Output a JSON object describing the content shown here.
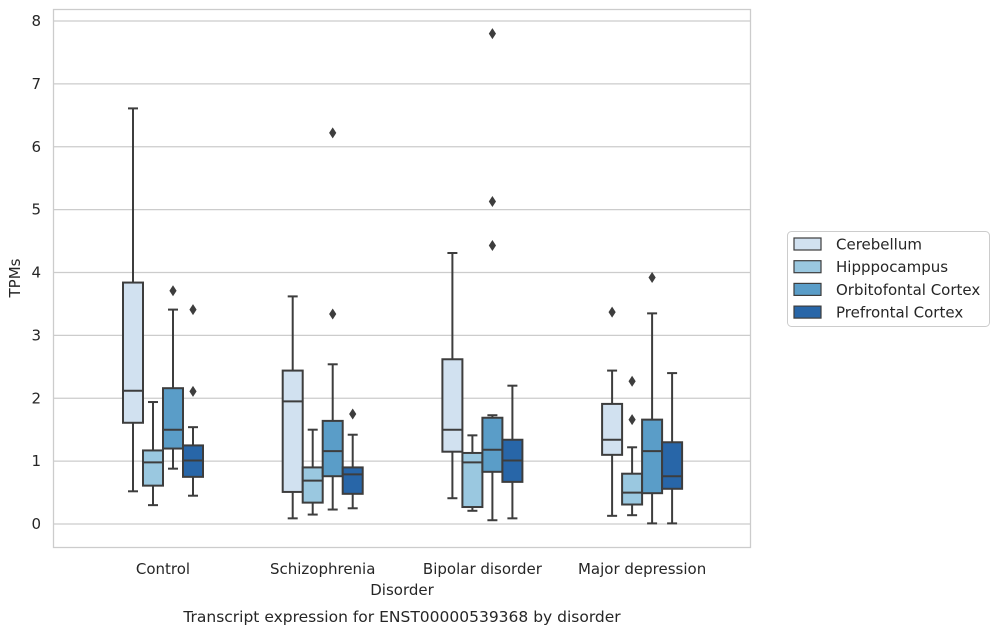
{
  "chart_data": {
    "type": "box",
    "title": "",
    "caption": "Transcript expression for ENST00000539368 by disorder",
    "xlabel": "Disorder",
    "ylabel": "TPMs",
    "ylim": [
      -0.38,
      8.18
    ],
    "yticks": [
      0,
      1,
      2,
      3,
      4,
      5,
      6,
      7,
      8
    ],
    "grid": true,
    "legend_position": "right",
    "categories": [
      "Control",
      "Schizophrenia",
      "Bipolar disorder",
      "Major depression"
    ],
    "series": [
      {
        "name": "Cerebellum",
        "color": "#d1e1f0",
        "boxes": [
          {
            "whislo": 0.52,
            "q1": 1.61,
            "med": 2.12,
            "q3": 3.84,
            "whishi": 6.61,
            "fliers": []
          },
          {
            "whislo": 0.09,
            "q1": 0.51,
            "med": 1.95,
            "q3": 2.44,
            "whishi": 3.62,
            "fliers": []
          },
          {
            "whislo": 0.41,
            "q1": 1.15,
            "med": 1.5,
            "q3": 2.62,
            "whishi": 4.31,
            "fliers": []
          },
          {
            "whislo": 0.13,
            "q1": 1.1,
            "med": 1.34,
            "q3": 1.91,
            "whishi": 2.44,
            "fliers": [
              3.37
            ]
          }
        ]
      },
      {
        "name": "Hipppocampus",
        "color": "#9ac8e0",
        "boxes": [
          {
            "whislo": 0.3,
            "q1": 0.61,
            "med": 0.98,
            "q3": 1.17,
            "whishi": 1.94,
            "fliers": []
          },
          {
            "whislo": 0.15,
            "q1": 0.34,
            "med": 0.69,
            "q3": 0.9,
            "whishi": 1.5,
            "fliers": []
          },
          {
            "whislo": 0.21,
            "q1": 0.27,
            "med": 0.98,
            "q3": 1.13,
            "whishi": 1.41,
            "fliers": []
          },
          {
            "whislo": 0.14,
            "q1": 0.31,
            "med": 0.5,
            "q3": 0.8,
            "whishi": 1.22,
            "fliers": [
              1.66,
              2.27
            ]
          }
        ]
      },
      {
        "name": "Orbitofontal Cortex",
        "color": "#5a9dc8",
        "boxes": [
          {
            "whislo": 0.88,
            "q1": 1.2,
            "med": 1.5,
            "q3": 2.16,
            "whishi": 3.41,
            "fliers": [
              3.71
            ]
          },
          {
            "whislo": 0.23,
            "q1": 0.76,
            "med": 1.16,
            "q3": 1.64,
            "whishi": 2.54,
            "fliers": [
              3.34,
              6.22
            ]
          },
          {
            "whislo": 0.06,
            "q1": 0.83,
            "med": 1.18,
            "q3": 1.69,
            "whishi": 1.73,
            "fliers": [
              4.43,
              5.13,
              7.8
            ]
          },
          {
            "whislo": 0.01,
            "q1": 0.49,
            "med": 1.16,
            "q3": 1.66,
            "whishi": 3.35,
            "fliers": [
              3.92
            ]
          }
        ]
      },
      {
        "name": "Prefrontal Cortex",
        "color": "#2866a8",
        "boxes": [
          {
            "whislo": 0.45,
            "q1": 0.75,
            "med": 1.01,
            "q3": 1.25,
            "whishi": 1.54,
            "fliers": [
              2.11,
              3.41
            ]
          },
          {
            "whislo": 0.25,
            "q1": 0.48,
            "med": 0.79,
            "q3": 0.9,
            "whishi": 1.42,
            "fliers": [
              1.75
            ]
          },
          {
            "whislo": 0.09,
            "q1": 0.67,
            "med": 1.01,
            "q3": 1.34,
            "whishi": 2.2,
            "fliers": []
          },
          {
            "whislo": 0.01,
            "q1": 0.56,
            "med": 0.76,
            "q3": 1.3,
            "whishi": 2.4,
            "fliers": []
          }
        ]
      }
    ]
  }
}
